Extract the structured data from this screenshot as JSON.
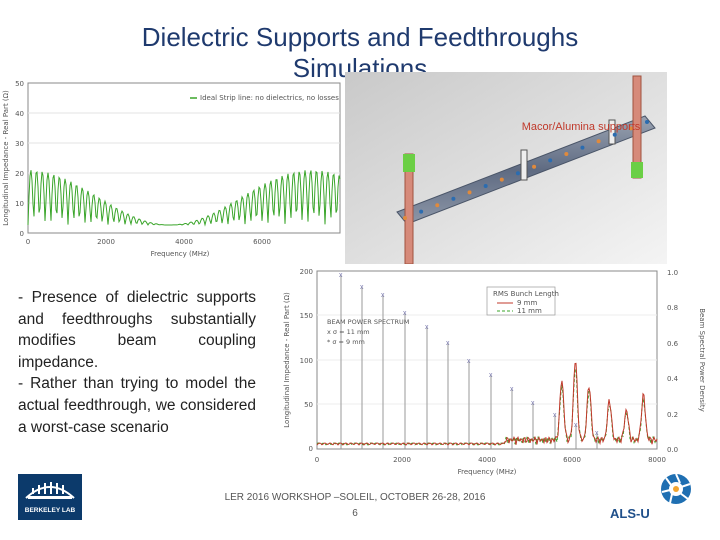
{
  "slide": {
    "title_line1": "Dielectric Supports and Feedthroughs",
    "title_line2": "Simulations",
    "bullet1": "- Presence of dielectric supports and feedthroughs substantially modifies beam coupling impedance.",
    "bullet2": "- Rather than trying to model the actual feedthrough, we considered a worst-case scenario",
    "footer_line1": "LER 2016 WORKSHOP –SOLEIL, OCTOBER 26-28, 2016",
    "page_number": "6",
    "logo_left_text": "BERKELEY LAB",
    "logo_right_text": "ALS-U"
  },
  "plot_left": {
    "legend": "Ideal Strip line: no dielectrics, no losses",
    "ylabel": "Longitudinal Impedance - Real Part (Ω)",
    "xlabel": "Frequency (MHz)",
    "yticks": [
      "50",
      "40",
      "30",
      "20",
      "10",
      "0"
    ],
    "xticks": [
      "0",
      "2000",
      "4000",
      "6000"
    ]
  },
  "model_view": {
    "annotation": "Macor/Alumina supports"
  },
  "plot_right": {
    "ylabel_left": "Longitudinal Impedance - Real Part (Ω)",
    "ylabel_right": "Beam Spectral Power Density",
    "xlabel": "Frequency (MHz)",
    "yticks_left": [
      "200",
      "150",
      "100",
      "50",
      "0"
    ],
    "yticks_right": [
      "1.0",
      "0.8",
      "0.6",
      "0.4",
      "0.2",
      "0.0"
    ],
    "xticks": [
      "0",
      "2000",
      "4000",
      "6000",
      "8000"
    ],
    "legend_title": "RMS Bunch Length",
    "legend_series": [
      "9 mm",
      "11 mm"
    ],
    "annotation_title": "BEAM POWER SPECTRUM",
    "annotation_line1": "x σ = 11 mm",
    "annotation_line2": "* σ = 9 mm"
  },
  "colors": {
    "title": "#1f3a6e",
    "curve_green": "#3aa52a",
    "curve_red": "#c0392b",
    "annotation": "#c0392b",
    "logo_bg": "#0c3a6b"
  }
}
